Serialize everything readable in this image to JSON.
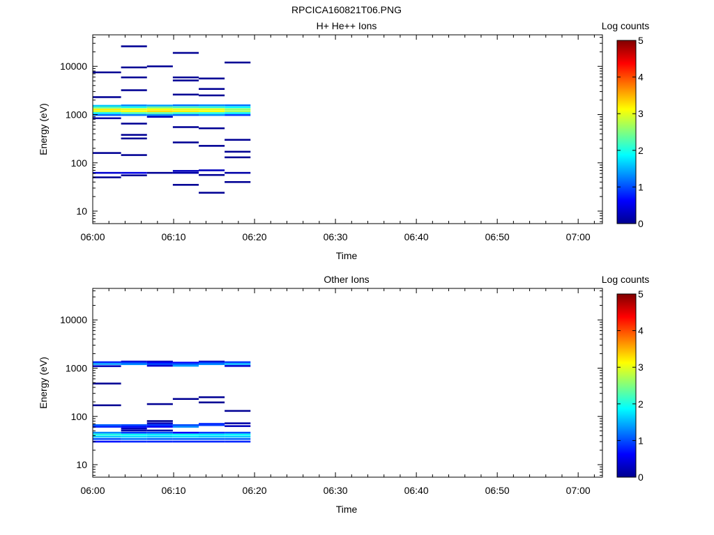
{
  "figure_title": "RPCICA160821T06.PNG",
  "chart_data": [
    {
      "type": "heatmap",
      "title": "H+ He++ Ions",
      "xlabel": "Time",
      "ylabel": "Energy (eV)",
      "x_ticks": [
        "06:00",
        "06:10",
        "06:20",
        "06:30",
        "06:40",
        "06:50",
        "07:00"
      ],
      "y_ticks": [
        "10",
        "100",
        "1000",
        "10000"
      ],
      "y_scale": "log",
      "ylim": [
        5.5,
        45000
      ],
      "xlim_minutes": [
        0,
        63
      ],
      "colorbar": {
        "label": "Log counts",
        "ticks": [
          "0",
          "1",
          "2",
          "3",
          "4",
          "5"
        ],
        "range": [
          0,
          5
        ]
      },
      "cells": [
        {
          "t0": 0,
          "t1": 3.5,
          "e": 7500,
          "v": 0.1
        },
        {
          "t0": 0,
          "t1": 3.5,
          "e": 2300,
          "v": 0.1
        },
        {
          "t0": 0,
          "t1": 3.5,
          "e": 1520,
          "v": 1.6
        },
        {
          "t0": 0,
          "t1": 3.5,
          "e": 1400,
          "v": 2.3
        },
        {
          "t0": 0,
          "t1": 3.5,
          "e": 1280,
          "v": 3.2
        },
        {
          "t0": 0,
          "t1": 3.5,
          "e": 1170,
          "v": 2.9
        },
        {
          "t0": 0,
          "t1": 3.5,
          "e": 1070,
          "v": 1.8
        },
        {
          "t0": 0,
          "t1": 3.5,
          "e": 980,
          "v": 1.1
        },
        {
          "t0": 0,
          "t1": 3.5,
          "e": 840,
          "v": 0.2
        },
        {
          "t0": 0,
          "t1": 3.5,
          "e": 160,
          "v": 0.1
        },
        {
          "t0": 0,
          "t1": 3.5,
          "e": 62,
          "v": 0.4
        },
        {
          "t0": 0,
          "t1": 3.5,
          "e": 50,
          "v": 0.1
        },
        {
          "t0": 3.5,
          "t1": 6.7,
          "e": 26000,
          "v": 0.1
        },
        {
          "t0": 3.5,
          "t1": 6.7,
          "e": 9500,
          "v": 0.1
        },
        {
          "t0": 3.5,
          "t1": 6.7,
          "e": 5900,
          "v": 0.1
        },
        {
          "t0": 3.5,
          "t1": 6.7,
          "e": 3200,
          "v": 0.1
        },
        {
          "t0": 3.5,
          "t1": 6.7,
          "e": 1550,
          "v": 1.3
        },
        {
          "t0": 3.5,
          "t1": 6.7,
          "e": 1420,
          "v": 2.0
        },
        {
          "t0": 3.5,
          "t1": 6.7,
          "e": 1290,
          "v": 3.0
        },
        {
          "t0": 3.5,
          "t1": 6.7,
          "e": 1175,
          "v": 3.1
        },
        {
          "t0": 3.5,
          "t1": 6.7,
          "e": 1070,
          "v": 2.2
        },
        {
          "t0": 3.5,
          "t1": 6.7,
          "e": 980,
          "v": 1.2
        },
        {
          "t0": 3.5,
          "t1": 6.7,
          "e": 650,
          "v": 0.1
        },
        {
          "t0": 3.5,
          "t1": 6.7,
          "e": 380,
          "v": 0.1
        },
        {
          "t0": 3.5,
          "t1": 6.7,
          "e": 320,
          "v": 0.1
        },
        {
          "t0": 3.5,
          "t1": 6.7,
          "e": 145,
          "v": 0.1
        },
        {
          "t0": 3.5,
          "t1": 6.7,
          "e": 62,
          "v": 0.5
        },
        {
          "t0": 3.5,
          "t1": 6.7,
          "e": 55,
          "v": 0.1
        },
        {
          "t0": 6.7,
          "t1": 9.9,
          "e": 10000,
          "v": 0.1
        },
        {
          "t0": 6.7,
          "t1": 9.9,
          "e": 1540,
          "v": 1.4
        },
        {
          "t0": 6.7,
          "t1": 9.9,
          "e": 1410,
          "v": 2.4
        },
        {
          "t0": 6.7,
          "t1": 9.9,
          "e": 1290,
          "v": 3.1
        },
        {
          "t0": 6.7,
          "t1": 9.9,
          "e": 1175,
          "v": 3.3
        },
        {
          "t0": 6.7,
          "t1": 9.9,
          "e": 1070,
          "v": 2.3
        },
        {
          "t0": 6.7,
          "t1": 9.9,
          "e": 980,
          "v": 1.3
        },
        {
          "t0": 6.7,
          "t1": 9.9,
          "e": 900,
          "v": 0.3
        },
        {
          "t0": 6.7,
          "t1": 9.9,
          "e": 62,
          "v": 0.1
        },
        {
          "t0": 9.9,
          "t1": 13.1,
          "e": 19000,
          "v": 0.1
        },
        {
          "t0": 9.9,
          "t1": 13.1,
          "e": 5900,
          "v": 0.1
        },
        {
          "t0": 9.9,
          "t1": 13.1,
          "e": 5100,
          "v": 0.1
        },
        {
          "t0": 9.9,
          "t1": 13.1,
          "e": 2600,
          "v": 0.1
        },
        {
          "t0": 9.9,
          "t1": 13.1,
          "e": 1560,
          "v": 1.2
        },
        {
          "t0": 9.9,
          "t1": 13.1,
          "e": 1420,
          "v": 2.2
        },
        {
          "t0": 9.9,
          "t1": 13.1,
          "e": 1290,
          "v": 3.0
        },
        {
          "t0": 9.9,
          "t1": 13.1,
          "e": 1175,
          "v": 3.2
        },
        {
          "t0": 9.9,
          "t1": 13.1,
          "e": 1070,
          "v": 2.1
        },
        {
          "t0": 9.9,
          "t1": 13.1,
          "e": 980,
          "v": 1.1
        },
        {
          "t0": 9.9,
          "t1": 13.1,
          "e": 550,
          "v": 0.1
        },
        {
          "t0": 9.9,
          "t1": 13.1,
          "e": 265,
          "v": 0.1
        },
        {
          "t0": 9.9,
          "t1": 13.1,
          "e": 68,
          "v": 0.3
        },
        {
          "t0": 9.9,
          "t1": 13.1,
          "e": 62,
          "v": 0.2
        },
        {
          "t0": 9.9,
          "t1": 13.1,
          "e": 35,
          "v": 0.1
        },
        {
          "t0": 13.1,
          "t1": 16.3,
          "e": 5600,
          "v": 0.1
        },
        {
          "t0": 13.1,
          "t1": 16.3,
          "e": 3400,
          "v": 0.1
        },
        {
          "t0": 13.1,
          "t1": 16.3,
          "e": 2500,
          "v": 0.1
        },
        {
          "t0": 13.1,
          "t1": 16.3,
          "e": 1560,
          "v": 1.3
        },
        {
          "t0": 13.1,
          "t1": 16.3,
          "e": 1420,
          "v": 2.1
        },
        {
          "t0": 13.1,
          "t1": 16.3,
          "e": 1290,
          "v": 3.0
        },
        {
          "t0": 13.1,
          "t1": 16.3,
          "e": 1175,
          "v": 3.1
        },
        {
          "t0": 13.1,
          "t1": 16.3,
          "e": 1070,
          "v": 2.0
        },
        {
          "t0": 13.1,
          "t1": 16.3,
          "e": 980,
          "v": 1.3
        },
        {
          "t0": 13.1,
          "t1": 16.3,
          "e": 520,
          "v": 0.1
        },
        {
          "t0": 13.1,
          "t1": 16.3,
          "e": 225,
          "v": 0.1
        },
        {
          "t0": 13.1,
          "t1": 16.3,
          "e": 70,
          "v": 0.3
        },
        {
          "t0": 13.1,
          "t1": 16.3,
          "e": 56,
          "v": 0.1
        },
        {
          "t0": 13.1,
          "t1": 16.3,
          "e": 24,
          "v": 0.1
        },
        {
          "t0": 16.3,
          "t1": 19.5,
          "e": 12000,
          "v": 0.1
        },
        {
          "t0": 16.3,
          "t1": 19.5,
          "e": 1560,
          "v": 1.2
        },
        {
          "t0": 16.3,
          "t1": 19.5,
          "e": 1420,
          "v": 1.9
        },
        {
          "t0": 16.3,
          "t1": 19.5,
          "e": 1290,
          "v": 2.6
        },
        {
          "t0": 16.3,
          "t1": 19.5,
          "e": 1175,
          "v": 2.7
        },
        {
          "t0": 16.3,
          "t1": 19.5,
          "e": 1070,
          "v": 1.8
        },
        {
          "t0": 16.3,
          "t1": 19.5,
          "e": 980,
          "v": 0.9
        },
        {
          "t0": 16.3,
          "t1": 19.5,
          "e": 300,
          "v": 0.1
        },
        {
          "t0": 16.3,
          "t1": 19.5,
          "e": 170,
          "v": 0.1
        },
        {
          "t0": 16.3,
          "t1": 19.5,
          "e": 130,
          "v": 0.1
        },
        {
          "t0": 16.3,
          "t1": 19.5,
          "e": 62,
          "v": 0.2
        },
        {
          "t0": 16.3,
          "t1": 19.5,
          "e": 40,
          "v": 0.1
        }
      ]
    },
    {
      "type": "heatmap",
      "title": "Other Ions",
      "xlabel": "Time",
      "ylabel": "Energy (eV)",
      "x_ticks": [
        "06:00",
        "06:10",
        "06:20",
        "06:30",
        "06:40",
        "06:50",
        "07:00"
      ],
      "y_ticks": [
        "10",
        "100",
        "1000",
        "10000"
      ],
      "y_scale": "log",
      "ylim": [
        5.5,
        45000
      ],
      "xlim_minutes": [
        0,
        63
      ],
      "colorbar": {
        "label": "Log counts",
        "ticks": [
          "0",
          "1",
          "2",
          "3",
          "4",
          "5"
        ],
        "range": [
          0,
          5
        ]
      },
      "cells": [
        {
          "t0": 0,
          "t1": 3.5,
          "e": 1330,
          "v": 0.8
        },
        {
          "t0": 0,
          "t1": 3.5,
          "e": 1220,
          "v": 1.4
        },
        {
          "t0": 0,
          "t1": 3.5,
          "e": 1100,
          "v": 0.3
        },
        {
          "t0": 0,
          "t1": 3.5,
          "e": 480,
          "v": 0.1
        },
        {
          "t0": 0,
          "t1": 3.5,
          "e": 170,
          "v": 0.1
        },
        {
          "t0": 0,
          "t1": 3.5,
          "e": 66,
          "v": 1.1
        },
        {
          "t0": 0,
          "t1": 3.5,
          "e": 61,
          "v": 0.8
        },
        {
          "t0": 0,
          "t1": 3.5,
          "e": 46,
          "v": 1.3
        },
        {
          "t0": 0,
          "t1": 3.5,
          "e": 42,
          "v": 2.0
        },
        {
          "t0": 0,
          "t1": 3.5,
          "e": 38,
          "v": 1.6
        },
        {
          "t0": 0,
          "t1": 3.5,
          "e": 34,
          "v": 1.0
        },
        {
          "t0": 0,
          "t1": 3.5,
          "e": 30,
          "v": 0.7
        },
        {
          "t0": 3.5,
          "t1": 6.7,
          "e": 1370,
          "v": 0.4
        },
        {
          "t0": 3.5,
          "t1": 6.7,
          "e": 1300,
          "v": 0.9
        },
        {
          "t0": 3.5,
          "t1": 6.7,
          "e": 1210,
          "v": 1.3
        },
        {
          "t0": 3.5,
          "t1": 6.7,
          "e": 66,
          "v": 1.0
        },
        {
          "t0": 3.5,
          "t1": 6.7,
          "e": 61,
          "v": 0.7
        },
        {
          "t0": 3.5,
          "t1": 6.7,
          "e": 56,
          "v": 0.3
        },
        {
          "t0": 3.5,
          "t1": 6.7,
          "e": 51,
          "v": 0.2
        },
        {
          "t0": 3.5,
          "t1": 6.7,
          "e": 46,
          "v": 0.9
        },
        {
          "t0": 3.5,
          "t1": 6.7,
          "e": 42,
          "v": 1.9
        },
        {
          "t0": 3.5,
          "t1": 6.7,
          "e": 38,
          "v": 1.7
        },
        {
          "t0": 3.5,
          "t1": 6.7,
          "e": 34,
          "v": 1.2
        },
        {
          "t0": 3.5,
          "t1": 6.7,
          "e": 30,
          "v": 0.8
        },
        {
          "t0": 6.7,
          "t1": 9.9,
          "e": 1370,
          "v": 0.3
        },
        {
          "t0": 6.7,
          "t1": 9.9,
          "e": 1300,
          "v": 0.6
        },
        {
          "t0": 6.7,
          "t1": 9.9,
          "e": 1210,
          "v": 1.0
        },
        {
          "t0": 6.7,
          "t1": 9.9,
          "e": 1120,
          "v": 0.4
        },
        {
          "t0": 6.7,
          "t1": 9.9,
          "e": 180,
          "v": 0.1
        },
        {
          "t0": 6.7,
          "t1": 9.9,
          "e": 80,
          "v": 0.1
        },
        {
          "t0": 6.7,
          "t1": 9.9,
          "e": 72,
          "v": 0.3
        },
        {
          "t0": 6.7,
          "t1": 9.9,
          "e": 66,
          "v": 0.9
        },
        {
          "t0": 6.7,
          "t1": 9.9,
          "e": 61,
          "v": 0.6
        },
        {
          "t0": 6.7,
          "t1": 9.9,
          "e": 51,
          "v": 0.2
        },
        {
          "t0": 6.7,
          "t1": 9.9,
          "e": 46,
          "v": 1.0
        },
        {
          "t0": 6.7,
          "t1": 9.9,
          "e": 42,
          "v": 1.8
        },
        {
          "t0": 6.7,
          "t1": 9.9,
          "e": 38,
          "v": 1.6
        },
        {
          "t0": 6.7,
          "t1": 9.9,
          "e": 34,
          "v": 1.1
        },
        {
          "t0": 6.7,
          "t1": 9.9,
          "e": 30,
          "v": 0.8
        },
        {
          "t0": 9.9,
          "t1": 13.1,
          "e": 1300,
          "v": 0.6
        },
        {
          "t0": 9.9,
          "t1": 13.1,
          "e": 1210,
          "v": 1.1
        },
        {
          "t0": 9.9,
          "t1": 13.1,
          "e": 1120,
          "v": 1.4
        },
        {
          "t0": 9.9,
          "t1": 13.1,
          "e": 230,
          "v": 0.1
        },
        {
          "t0": 9.9,
          "t1": 13.1,
          "e": 66,
          "v": 1.0
        },
        {
          "t0": 9.9,
          "t1": 13.1,
          "e": 61,
          "v": 1.3
        },
        {
          "t0": 9.9,
          "t1": 13.1,
          "e": 46,
          "v": 0.6
        },
        {
          "t0": 9.9,
          "t1": 13.1,
          "e": 42,
          "v": 1.9
        },
        {
          "t0": 9.9,
          "t1": 13.1,
          "e": 38,
          "v": 1.7
        },
        {
          "t0": 9.9,
          "t1": 13.1,
          "e": 34,
          "v": 1.1
        },
        {
          "t0": 9.9,
          "t1": 13.1,
          "e": 30,
          "v": 0.8
        },
        {
          "t0": 13.1,
          "t1": 16.3,
          "e": 1370,
          "v": 0.3
        },
        {
          "t0": 13.1,
          "t1": 16.3,
          "e": 1300,
          "v": 0.9
        },
        {
          "t0": 13.1,
          "t1": 16.3,
          "e": 1210,
          "v": 1.3
        },
        {
          "t0": 13.1,
          "t1": 16.3,
          "e": 250,
          "v": 0.1
        },
        {
          "t0": 13.1,
          "t1": 16.3,
          "e": 195,
          "v": 0.1
        },
        {
          "t0": 13.1,
          "t1": 16.3,
          "e": 70,
          "v": 0.8
        },
        {
          "t0": 13.1,
          "t1": 16.3,
          "e": 66,
          "v": 0.9
        },
        {
          "t0": 13.1,
          "t1": 16.3,
          "e": 46,
          "v": 0.9
        },
        {
          "t0": 13.1,
          "t1": 16.3,
          "e": 42,
          "v": 1.8
        },
        {
          "t0": 13.1,
          "t1": 16.3,
          "e": 38,
          "v": 1.6
        },
        {
          "t0": 13.1,
          "t1": 16.3,
          "e": 34,
          "v": 1.1
        },
        {
          "t0": 13.1,
          "t1": 16.3,
          "e": 30,
          "v": 0.8
        },
        {
          "t0": 16.3,
          "t1": 19.5,
          "e": 1330,
          "v": 0.9
        },
        {
          "t0": 16.3,
          "t1": 19.5,
          "e": 1220,
          "v": 1.5
        },
        {
          "t0": 16.3,
          "t1": 19.5,
          "e": 1110,
          "v": 0.4
        },
        {
          "t0": 16.3,
          "t1": 19.5,
          "e": 130,
          "v": 0.1
        },
        {
          "t0": 16.3,
          "t1": 19.5,
          "e": 72,
          "v": 0.2
        },
        {
          "t0": 16.3,
          "t1": 19.5,
          "e": 63,
          "v": 0.3
        },
        {
          "t0": 16.3,
          "t1": 19.5,
          "e": 46,
          "v": 1.0
        },
        {
          "t0": 16.3,
          "t1": 19.5,
          "e": 42,
          "v": 1.9
        },
        {
          "t0": 16.3,
          "t1": 19.5,
          "e": 38,
          "v": 1.6
        },
        {
          "t0": 16.3,
          "t1": 19.5,
          "e": 34,
          "v": 1.1
        },
        {
          "t0": 16.3,
          "t1": 19.5,
          "e": 30,
          "v": 0.8
        }
      ]
    }
  ]
}
